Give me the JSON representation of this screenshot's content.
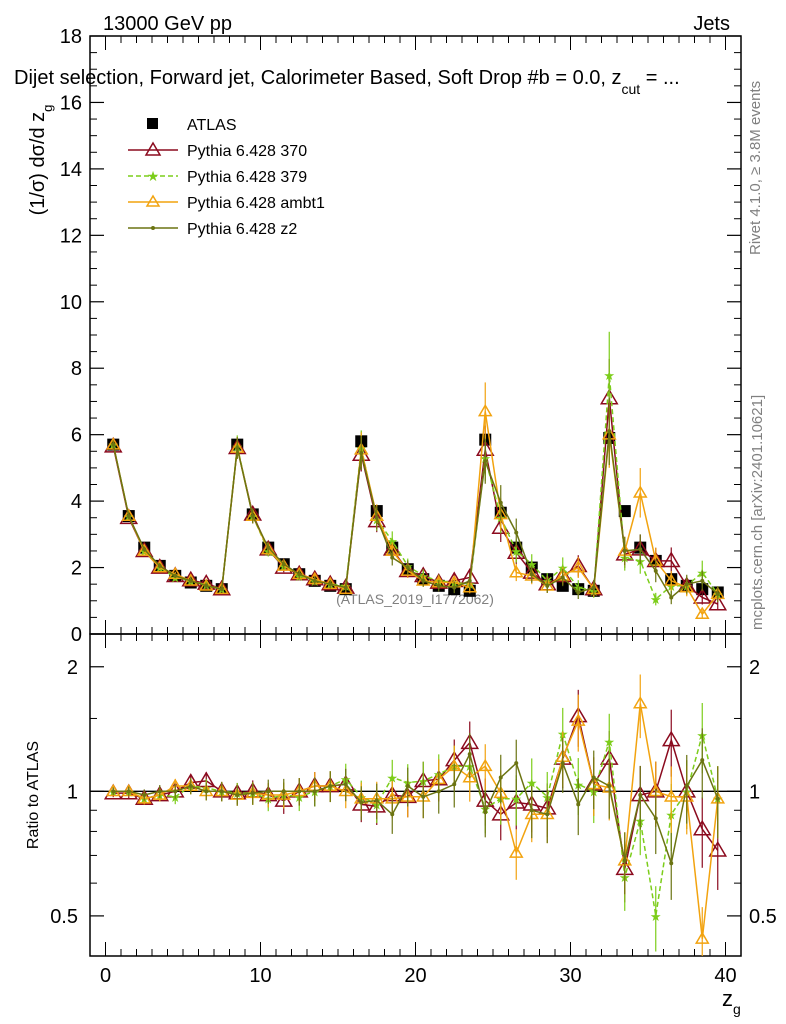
{
  "header": {
    "energy_label": "13000 GeV pp",
    "process_label": "Jets",
    "title": "Dijet selection, Forward jet, Calorimeter Based, Soft Drop #b = 0.0, z",
    "title_sub": "cut",
    "title_end": " = ...",
    "analysis_tag": "(ATLAS_2019_I1772062)"
  },
  "side_labels": {
    "rivet": "Rivet 4.1.0, ≥ 3.8M events",
    "mcplots": "mcplots.cern.ch [arXiv:2401.10621]"
  },
  "colors": {
    "atlas": "#000000",
    "p370": "#8b0a1e",
    "p379": "#7ccd1a",
    "ambt1": "#f2a30f",
    "z2": "#6b7412"
  },
  "chart_data": [
    {
      "type": "line",
      "panel": "main",
      "ylabel": "(1/σ) dσ/d z",
      "ylabel_sub": "g",
      "ylim": [
        0,
        18
      ],
      "yticks": [
        0,
        2,
        4,
        6,
        8,
        10,
        12,
        14,
        16,
        18
      ],
      "xlim": [
        -1,
        41
      ],
      "legend_position": "top-left",
      "x": [
        0.5,
        1.5,
        2.5,
        3.5,
        4.5,
        5.5,
        6.5,
        7.5,
        8.5,
        9.5,
        10.5,
        11.5,
        12.5,
        13.5,
        14.5,
        15.5,
        16.5,
        17.5,
        18.5,
        19.5,
        20.5,
        21.5,
        22.5,
        23.5,
        24.5,
        25.5,
        26.5,
        27.5,
        28.5,
        29.5,
        30.5,
        31.5,
        32.5,
        33.5,
        34.5,
        35.5,
        36.5,
        37.5,
        38.5,
        39.5
      ],
      "series": [
        {
          "name": "ATLAS",
          "key": "atlas",
          "marker": "square",
          "values": [
            5.7,
            3.55,
            2.6,
            2.05,
            1.75,
            1.55,
            1.45,
            1.35,
            5.7,
            3.6,
            2.6,
            2.1,
            1.8,
            1.6,
            1.45,
            1.35,
            5.8,
            3.7,
            2.6,
            1.95,
            1.65,
            1.45,
            1.35,
            1.3,
            5.85,
            3.65,
            2.6,
            2.0,
            1.65,
            1.45,
            1.35,
            1.3,
            5.9,
            3.7,
            2.6,
            2.2,
            1.65,
            1.45,
            1.35,
            1.25
          ]
        },
        {
          "name": "Pythia 6.428 370",
          "key": "p370",
          "marker": "triangle",
          "values": [
            5.65,
            3.5,
            2.5,
            2.0,
            1.75,
            1.62,
            1.52,
            1.35,
            5.6,
            3.6,
            2.55,
            2.0,
            1.8,
            1.65,
            1.5,
            1.4,
            5.4,
            3.4,
            2.55,
            1.9,
            1.75,
            1.55,
            1.6,
            1.7,
            5.55,
            3.2,
            2.45,
            1.85,
            1.5,
            1.75,
            2.05,
            1.35,
            7.1,
            2.4,
            2.55,
            2.2,
            2.2,
            1.45,
            1.1,
            0.9
          ]
        },
        {
          "name": "Pythia 6.428 379",
          "key": "p379",
          "marker": "star",
          "values": [
            5.7,
            3.55,
            2.5,
            2.0,
            1.7,
            1.6,
            1.48,
            1.35,
            5.65,
            3.55,
            2.5,
            2.05,
            1.75,
            1.6,
            1.5,
            1.45,
            5.6,
            3.45,
            2.8,
            2.05,
            1.75,
            1.6,
            1.55,
            1.5,
            5.3,
            3.5,
            2.5,
            2.1,
            1.6,
            2.0,
            1.4,
            1.3,
            7.8,
            2.3,
            2.2,
            1.05,
            1.45,
            1.45,
            1.85,
            1.2
          ]
        },
        {
          "name": "Pythia 6.428 ambt1",
          "key": "ambt1",
          "marker": "triangle",
          "values": [
            5.7,
            3.55,
            2.5,
            2.0,
            1.8,
            1.6,
            1.45,
            1.35,
            5.6,
            3.55,
            2.55,
            2.05,
            1.8,
            1.65,
            1.5,
            1.35,
            5.55,
            3.55,
            2.5,
            1.9,
            1.6,
            1.55,
            1.55,
            1.4,
            6.7,
            3.6,
            1.85,
            1.75,
            1.45,
            1.75,
            2.0,
            1.35,
            6.0,
            2.5,
            4.25,
            2.2,
            1.6,
            1.4,
            0.6,
            1.2
          ]
        },
        {
          "name": "Pythia 6.428 z2",
          "key": "z2",
          "marker": "dot",
          "values": [
            5.7,
            3.55,
            2.55,
            2.05,
            1.75,
            1.6,
            1.45,
            1.35,
            5.6,
            3.55,
            2.6,
            2.1,
            1.8,
            1.6,
            1.5,
            1.4,
            5.45,
            3.5,
            2.3,
            2.0,
            1.6,
            1.45,
            1.4,
            1.6,
            5.2,
            3.95,
            3.05,
            1.8,
            1.45,
            1.7,
            1.25,
            1.4,
            6.1,
            2.5,
            2.55,
            1.9,
            1.1,
            1.5,
            1.6,
            1.2
          ]
        }
      ]
    },
    {
      "type": "line",
      "panel": "ratio",
      "ylabel": "Ratio to ATLAS",
      "xlabel": "z",
      "xlabel_sub": "g",
      "yscale": "log",
      "ylim": [
        0.4,
        2.4
      ],
      "yticks": [
        0.5,
        1,
        2
      ],
      "xlim": [
        -1,
        41
      ],
      "xticks": [
        0,
        10,
        20,
        30,
        40
      ],
      "x": [
        0.5,
        1.5,
        2.5,
        3.5,
        4.5,
        5.5,
        6.5,
        7.5,
        8.5,
        9.5,
        10.5,
        11.5,
        12.5,
        13.5,
        14.5,
        15.5,
        16.5,
        17.5,
        18.5,
        19.5,
        20.5,
        21.5,
        22.5,
        23.5,
        24.5,
        25.5,
        26.5,
        27.5,
        28.5,
        29.5,
        30.5,
        31.5,
        32.5,
        33.5,
        34.5,
        35.5,
        36.5,
        37.5,
        38.5,
        39.5
      ],
      "series": [
        {
          "name": "Pythia 6.428 370",
          "key": "p370",
          "marker": "triangle",
          "values": [
            0.99,
            0.99,
            0.96,
            0.98,
            1.0,
            1.05,
            1.06,
            1.0,
            0.99,
            1.0,
            0.98,
            0.95,
            1.0,
            1.03,
            1.03,
            1.04,
            0.93,
            0.92,
            0.98,
            0.97,
            1.06,
            1.07,
            1.19,
            1.31,
            0.95,
            0.88,
            0.94,
            0.93,
            0.91,
            1.2,
            1.52,
            1.04,
            1.2,
            0.65,
            0.98,
            1.0,
            1.33,
            1.0,
            0.81,
            0.72
          ]
        },
        {
          "name": "Pythia 6.428 379",
          "key": "p379",
          "marker": "star",
          "values": [
            1.0,
            1.0,
            0.96,
            0.98,
            0.97,
            1.03,
            1.02,
            1.0,
            0.99,
            0.99,
            0.96,
            0.98,
            0.97,
            1.0,
            1.03,
            1.07,
            0.97,
            0.93,
            1.08,
            1.05,
            1.06,
            1.1,
            1.15,
            1.15,
            0.91,
            0.96,
            0.96,
            1.05,
            0.97,
            1.38,
            1.04,
            1.0,
            1.32,
            0.62,
            0.85,
            0.5,
            0.88,
            1.0,
            1.37,
            0.96
          ]
        },
        {
          "name": "Pythia 6.428 ambt1",
          "key": "ambt1",
          "marker": "triangle",
          "values": [
            1.0,
            1.0,
            0.96,
            0.98,
            1.03,
            1.03,
            1.0,
            1.0,
            0.98,
            0.99,
            0.98,
            0.98,
            1.0,
            1.03,
            1.03,
            1.0,
            0.96,
            0.96,
            0.96,
            0.97,
            0.97,
            1.07,
            1.15,
            1.08,
            1.15,
            0.99,
            0.71,
            0.88,
            0.88,
            1.21,
            1.48,
            1.04,
            1.02,
            0.68,
            1.63,
            1.0,
            0.97,
            0.97,
            0.44,
            0.96
          ]
        },
        {
          "name": "Pythia 6.428 z2",
          "key": "z2",
          "marker": "dot",
          "values": [
            1.0,
            1.0,
            0.98,
            1.0,
            1.0,
            1.03,
            1.0,
            1.0,
            0.98,
            0.99,
            1.0,
            1.0,
            1.0,
            1.0,
            1.03,
            1.04,
            0.94,
            0.95,
            0.88,
            1.03,
            0.97,
            1.0,
            1.04,
            1.23,
            0.89,
            1.08,
            1.17,
            0.9,
            0.88,
            1.17,
            0.93,
            1.08,
            1.03,
            0.68,
            0.98,
            0.86,
            0.67,
            1.03,
            1.19,
            0.96
          ]
        }
      ]
    }
  ],
  "legend": {
    "items": [
      {
        "label": "ATLAS",
        "key": "atlas"
      },
      {
        "label": "Pythia 6.428 370",
        "key": "p370"
      },
      {
        "label": "Pythia 6.428 379",
        "key": "p379"
      },
      {
        "label": "Pythia 6.428 ambt1",
        "key": "ambt1"
      },
      {
        "label": "Pythia 6.428 z2",
        "key": "z2"
      }
    ]
  }
}
